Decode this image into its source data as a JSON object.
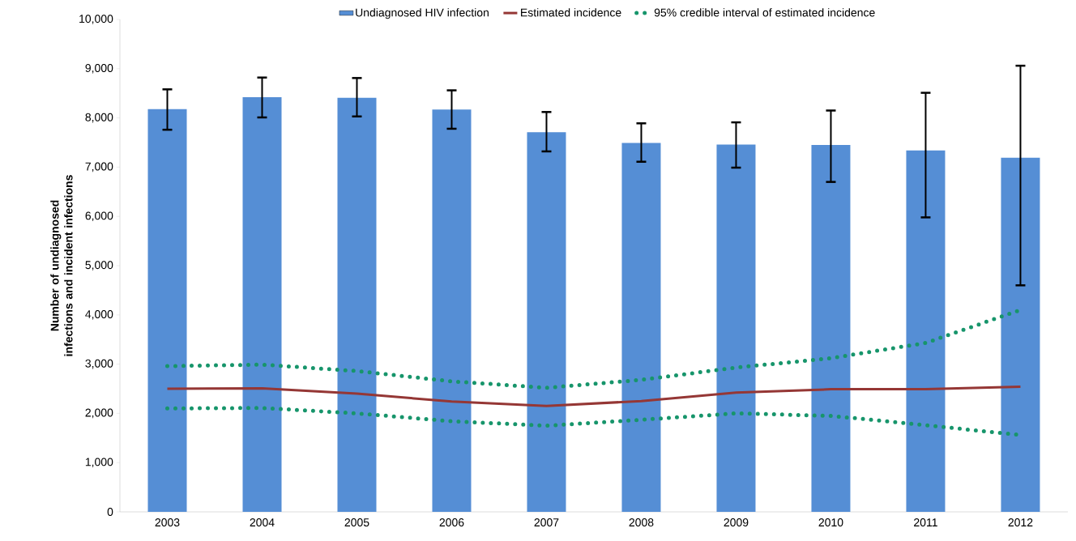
{
  "chart_data": {
    "type": "bar",
    "ylabel": "Number of undiagnosed infections and incident infections",
    "categories": [
      "2003",
      "2004",
      "2005",
      "2006",
      "2007",
      "2008",
      "2009",
      "2010",
      "2011",
      "2012"
    ],
    "ylim": [
      0,
      10000
    ],
    "yticks": [
      0,
      {
        "value": 1000,
        "label": "1,000"
      },
      {
        "value": 2000,
        "label": "2,000"
      },
      {
        "value": 3000,
        "label": "3,000"
      },
      {
        "value": 4000,
        "label": "4,000"
      },
      {
        "value": 5000,
        "label": "5,000"
      },
      {
        "value": 6000,
        "label": "6,000"
      },
      {
        "value": 7000,
        "label": "7,000"
      },
      {
        "value": 8000,
        "label": "8,000"
      },
      {
        "value": 9000,
        "label": "9,000"
      },
      {
        "value": 10000,
        "label": "10,000"
      }
    ],
    "legend": "top",
    "series": [
      {
        "name": "Undiagnosed HIV infection",
        "color": "#558ed5",
        "values": [
          8180,
          8420,
          8410,
          8170,
          7710,
          7490,
          7460,
          7450,
          7340,
          7190
        ],
        "errors": [
          [
            7760,
            8580
          ],
          [
            8010,
            8820
          ],
          [
            8030,
            8810
          ],
          [
            7780,
            8560
          ],
          [
            7320,
            8120
          ],
          [
            7110,
            7890
          ],
          [
            6990,
            7910
          ],
          [
            6700,
            8150
          ],
          [
            5980,
            8510
          ],
          [
            4600,
            9060
          ]
        ]
      },
      {
        "name": "Estimated incidence",
        "type": "line",
        "line_style": "solid",
        "color": "#953735",
        "values": [
          2500,
          2510,
          2400,
          2240,
          2150,
          2250,
          2420,
          2490,
          2490,
          2540
        ]
      },
      {
        "name": "95% credible interval of estimated incidence",
        "type": "line",
        "line_style": "dotted",
        "color": "#17956b",
        "values": [
          2960,
          2990,
          2860,
          2650,
          2520,
          2680,
          2930,
          3120,
          3430,
          4100
        ]
      },
      {
        "type": "line",
        "line_style": "dotted",
        "color": "#17956b",
        "values": [
          2100,
          2110,
          2000,
          1840,
          1750,
          1870,
          2000,
          1950,
          1760,
          1560
        ]
      }
    ]
  }
}
